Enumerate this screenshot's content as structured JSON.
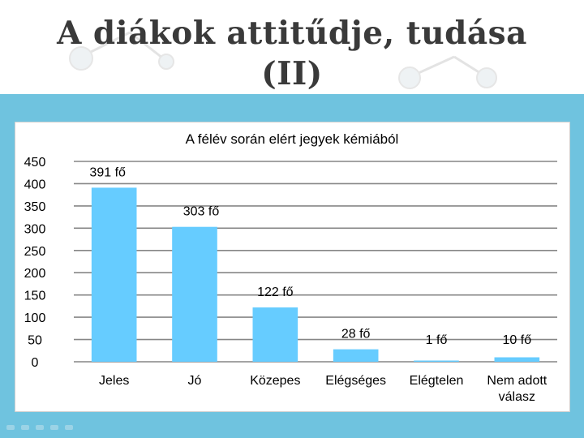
{
  "slide": {
    "title_line1": "A diákok attitűdje, tudása",
    "title_line2": "(II)"
  },
  "colors": {
    "bar": "#66ccff",
    "band": "#6fc3df",
    "plot_bg": "#ffffff",
    "gridline": "#868686"
  },
  "chart_data": {
    "type": "bar",
    "title": "A félév során elért jegyek kémiából",
    "xlabel": "",
    "ylabel": "",
    "categories": [
      "Jeles",
      "Jó",
      "Közepes",
      "Elégséges",
      "Elégtelen",
      "Nem adott válasz"
    ],
    "category_lines": [
      [
        "Jeles"
      ],
      [
        "Jó"
      ],
      [
        "Közepes"
      ],
      [
        "Elégséges"
      ],
      [
        "Elégtelen"
      ],
      [
        "Nem adott",
        "válasz"
      ]
    ],
    "values": [
      391,
      303,
      122,
      28,
      1,
      10
    ],
    "data_labels": [
      "391 fő",
      "303 fő",
      "122 fő",
      "28 fő",
      "1 fő",
      "10 fő"
    ],
    "ylim": [
      0,
      450
    ],
    "yticks": [
      "0",
      "50",
      "100",
      "150",
      "200",
      "250",
      "300",
      "350",
      "400",
      "450"
    ],
    "grid": true,
    "legend": "none"
  }
}
